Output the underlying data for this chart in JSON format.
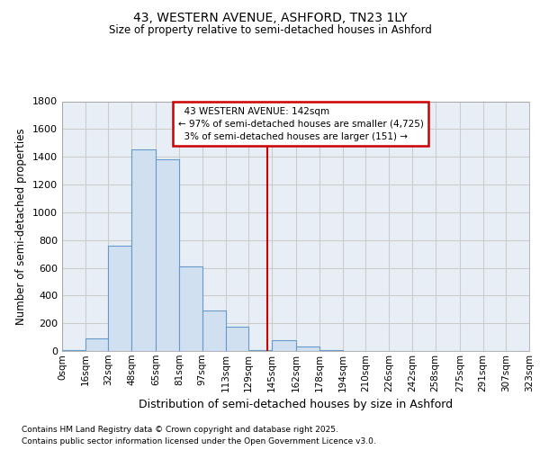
{
  "title": "43, WESTERN AVENUE, ASHFORD, TN23 1LY",
  "subtitle": "Size of property relative to semi-detached houses in Ashford",
  "xlabel": "Distribution of semi-detached houses by size in Ashford",
  "ylabel": "Number of semi-detached properties",
  "property_label": "43 WESTERN AVENUE: 142sqm",
  "pct_smaller": 97,
  "count_smaller": 4725,
  "pct_larger": 3,
  "count_larger": 151,
  "bin_edges": [
    0,
    16,
    32,
    48,
    65,
    81,
    97,
    113,
    129,
    145,
    162,
    178,
    194,
    210,
    226,
    242,
    258,
    275,
    291,
    307,
    323
  ],
  "bin_labels": [
    "0sqm",
    "16sqm",
    "32sqm",
    "48sqm",
    "65sqm",
    "81sqm",
    "97sqm",
    "113sqm",
    "129sqm",
    "145sqm",
    "162sqm",
    "178sqm",
    "194sqm",
    "210sqm",
    "226sqm",
    "242sqm",
    "258sqm",
    "275sqm",
    "291sqm",
    "307sqm",
    "323sqm"
  ],
  "bar_heights": [
    5,
    90,
    760,
    1450,
    1380,
    610,
    295,
    175,
    5,
    80,
    30,
    5,
    2,
    2,
    1,
    1,
    1,
    1,
    1,
    1
  ],
  "bar_color": "#d0e0f0",
  "bar_edge_color": "#6699cc",
  "vline_x": 142,
  "vline_color": "#cc0000",
  "ylim": [
    0,
    1800
  ],
  "yticks": [
    0,
    200,
    400,
    600,
    800,
    1000,
    1200,
    1400,
    1600,
    1800
  ],
  "grid_color": "#cccccc",
  "bg_color": "#e8eef5",
  "footer_line1": "Contains HM Land Registry data © Crown copyright and database right 2025.",
  "footer_line2": "Contains public sector information licensed under the Open Government Licence v3.0."
}
